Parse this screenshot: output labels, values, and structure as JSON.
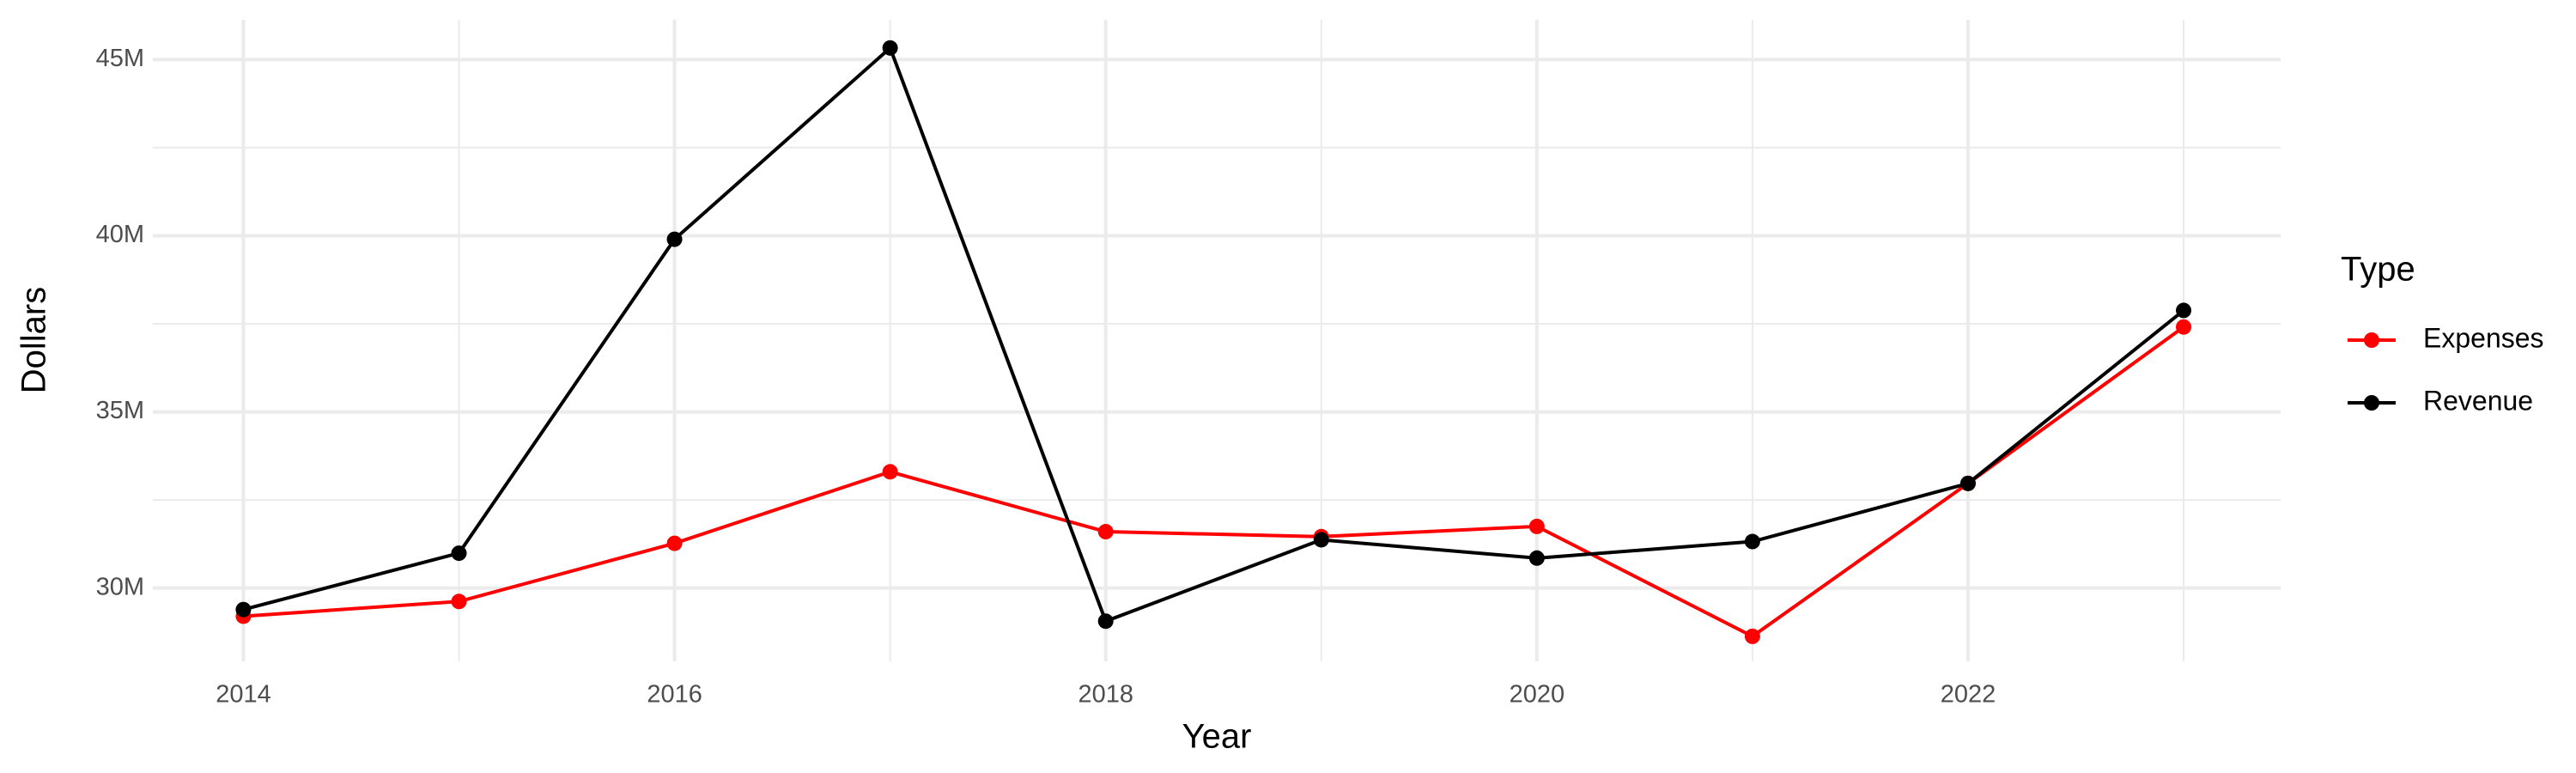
{
  "chart_data": {
    "type": "line",
    "x_label": "Year",
    "y_label": "Dollars",
    "x": [
      2014,
      2015,
      2016,
      2017,
      2018,
      2019,
      2020,
      2021,
      2022,
      2023
    ],
    "series": [
      {
        "name": "Expenses",
        "color": "#ff0000",
        "values": [
          29200000,
          29620000,
          31270000,
          33300000,
          31600000,
          31460000,
          31750000,
          28630000,
          32970000,
          37410000
        ]
      },
      {
        "name": "Revenue",
        "color": "#000000",
        "values": [
          29390000,
          30990000,
          39900000,
          45330000,
          29060000,
          31370000,
          30850000,
          31320000,
          32970000,
          37880000
        ]
      }
    ],
    "xlim": [
      2013.58,
      2023.45
    ],
    "xticks": [
      2014,
      2016,
      2018,
      2020,
      2022
    ],
    "ylim": [
      27920000,
      46130000
    ],
    "yticks": [
      {
        "value": 30000000,
        "label": "30M"
      },
      {
        "value": 35000000,
        "label": "35M"
      },
      {
        "value": 40000000,
        "label": "40M"
      },
      {
        "value": 45000000,
        "label": "45M"
      }
    ],
    "grid": true,
    "minor_grid": true,
    "legend_title": "Type",
    "legend_position": "right"
  }
}
